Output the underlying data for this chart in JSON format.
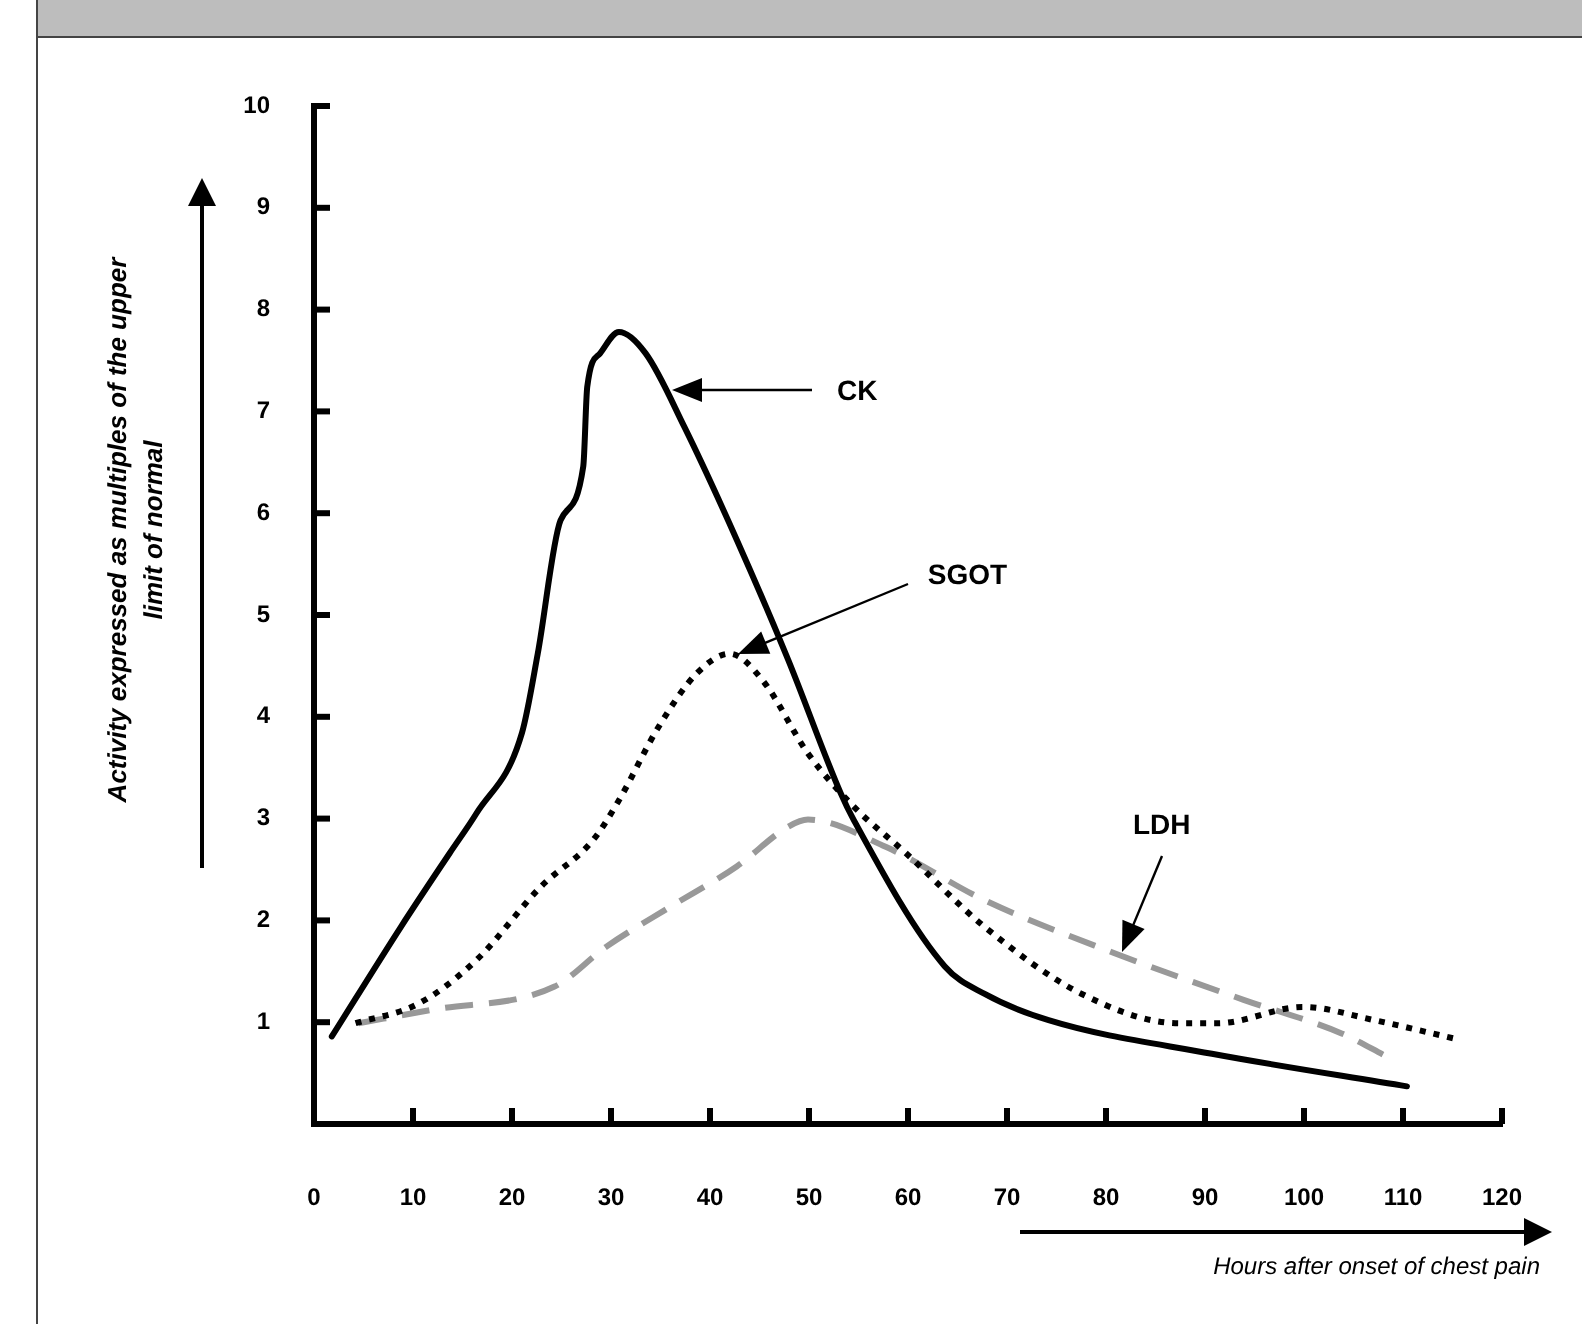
{
  "chart_data": {
    "type": "line",
    "annotations": [
      "CK",
      "SGOT",
      "LDH"
    ],
    "xlabel": "Hours after onset of chest pain",
    "ylabel": "Activity expressed as multiples of the upper limit of normal",
    "xlim": [
      0,
      120
    ],
    "xticks": [
      0,
      10,
      20,
      30,
      40,
      50,
      60,
      70,
      80,
      90,
      100,
      110,
      120
    ],
    "ylim": [
      0,
      10
    ],
    "yticks": [
      1,
      2,
      3,
      4,
      5,
      6,
      7,
      8,
      9,
      10
    ],
    "grid": false,
    "legend": false,
    "marker": "none",
    "series": [
      {
        "color": "#000000",
        "line_style": "solid",
        "x": [
          1.8,
          8.8,
          13.7,
          16.4,
          21,
          22.6,
          24.9,
          27.2,
          27.6,
          28.9,
          30.8,
          33.5,
          37.4,
          42.7,
          47.9,
          53.2,
          54.5,
          63.7,
          67.7,
          74.2,
          90.7,
          110.4
        ],
        "values": [
          0.86,
          1.94,
          2.66,
          3.05,
          3.84,
          4.62,
          5.93,
          6.46,
          7.24,
          7.57,
          7.78,
          7.57,
          6.85,
          5.74,
          4.56,
          3.25,
          2.99,
          1.55,
          1.28,
          1.02,
          0.69,
          0.37
        ]
      },
      {
        "color": "#000000",
        "line_style": "dotted",
        "x": [
          4.2,
          10.5,
          16.4,
          22.9,
          28.2,
          30.8,
          34.8,
          38.7,
          42,
          45.3,
          49.9,
          54.5,
          59.8,
          67.7,
          77.5,
          87.4,
          91.3,
          99.9,
          107.1,
          115.6
        ],
        "values": [
          0.99,
          1.18,
          1.61,
          2.33,
          2.79,
          3.18,
          3.9,
          4.43,
          4.62,
          4.36,
          3.64,
          3.12,
          2.66,
          1.94,
          1.28,
          0.99,
          0.99,
          1.15,
          1.02,
          0.83
        ]
      },
      {
        "color": "#999999",
        "line_style": "dashed",
        "x": [
          4.5,
          11.8,
          24.3,
          29.5,
          36.1,
          42.7,
          47.9,
          49.9,
          57.8,
          67.7,
          80.8,
          93.9,
          103.8,
          108.4
        ],
        "values": [
          0.99,
          1.12,
          1.35,
          1.74,
          2.14,
          2.53,
          2.92,
          2.99,
          2.72,
          2.2,
          1.68,
          1.22,
          0.89,
          0.66
        ]
      }
    ]
  }
}
